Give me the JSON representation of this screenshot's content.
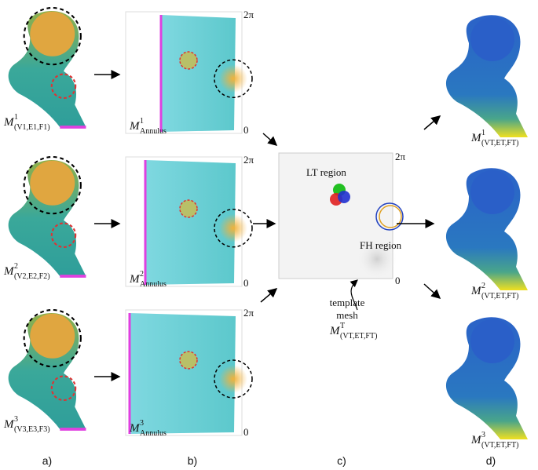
{
  "inputs": [
    {
      "mesh_label": {
        "base": "M",
        "sup": "1",
        "sub": "(V1,E1,F1)"
      },
      "annulus_label": {
        "base": "M",
        "sup": "1",
        "sub": "Annulus"
      },
      "top": "2π",
      "bottom": "0"
    },
    {
      "mesh_label": {
        "base": "M",
        "sup": "2",
        "sub": "(V2,E2,F2)"
      },
      "annulus_label": {
        "base": "M",
        "sup": "2",
        "sub": "Annulus"
      },
      "top": "2π",
      "bottom": "0"
    },
    {
      "mesh_label": {
        "base": "M",
        "sup": "3",
        "sub": "(V3,E3,F3)"
      },
      "annulus_label": {
        "base": "M",
        "sup": "3",
        "sub": "Annulus"
      },
      "top": "2π",
      "bottom": "0"
    }
  ],
  "template": {
    "top": "2π",
    "bottom": "0",
    "lt_region": "LT region",
    "fh_region": "FH region",
    "caption": [
      "template",
      "mesh"
    ],
    "label": {
      "base": "M",
      "sup": "T",
      "sub": "(VT,ET,FT)"
    }
  },
  "outputs": [
    {
      "base": "M",
      "sup": "1",
      "sub": "(VT,ET,FT)"
    },
    {
      "base": "M",
      "sup": "2",
      "sub": "(VT,ET,FT)"
    },
    {
      "base": "M",
      "sup": "3",
      "sub": "(VT,ET,FT)"
    }
  ],
  "panel_labels": [
    "a)",
    "b)",
    "c)",
    "d)"
  ]
}
